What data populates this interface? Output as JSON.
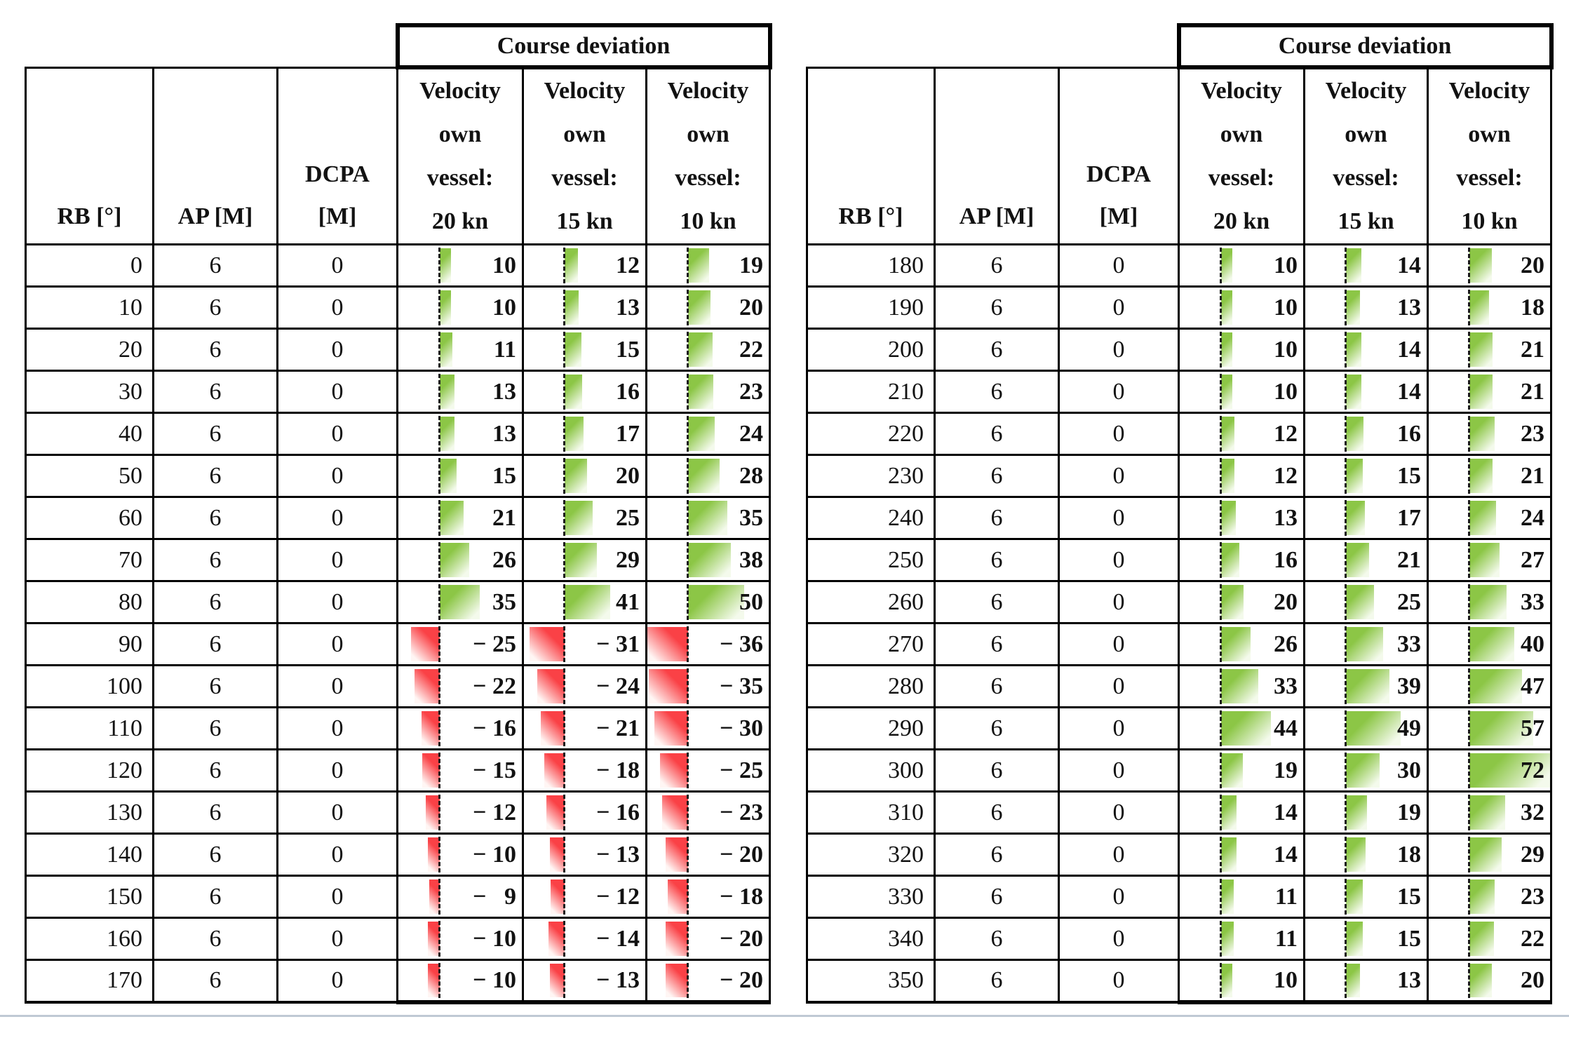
{
  "colors": {
    "bar_positive": "#8cc646",
    "bar_positive_fade": "#f4faec",
    "bar_negative": "#fa4146",
    "bar_negative_fade": "#fff6f4",
    "axis_line": "#1c1c1c",
    "table_border": "#000000",
    "bottom_rule": "#bfc9d4",
    "text": "#121212"
  },
  "bar_scale": {
    "min": -36,
    "max": 72
  },
  "tables": [
    {
      "title": "Course deviation",
      "columns": {
        "rb": "RB [°]",
        "ap": "AP [M]",
        "dcpa": "DCPA\n[M]",
        "vel": [
          "Velocity\nown\nvessel:\n20 kn",
          "Velocity\nown\nvessel:\n15 kn",
          "Velocity\nown\nvessel:\n10 kn"
        ]
      },
      "rows": [
        {
          "rb": "0",
          "ap": "6",
          "dcpa": "0",
          "v": [
            10,
            12,
            19
          ],
          "d": [
            "10",
            "12",
            "19"
          ]
        },
        {
          "rb": "10",
          "ap": "6",
          "dcpa": "0",
          "v": [
            10,
            13,
            20
          ],
          "d": [
            "10",
            "13",
            "20"
          ]
        },
        {
          "rb": "20",
          "ap": "6",
          "dcpa": "0",
          "v": [
            11,
            15,
            22
          ],
          "d": [
            "11",
            "15",
            "22"
          ]
        },
        {
          "rb": "30",
          "ap": "6",
          "dcpa": "0",
          "v": [
            13,
            16,
            23
          ],
          "d": [
            "13",
            "16",
            "23"
          ]
        },
        {
          "rb": "40",
          "ap": "6",
          "dcpa": "0",
          "v": [
            13,
            17,
            24
          ],
          "d": [
            "13",
            "17",
            "24"
          ]
        },
        {
          "rb": "50",
          "ap": "6",
          "dcpa": "0",
          "v": [
            15,
            20,
            28
          ],
          "d": [
            "15",
            "20",
            "28"
          ]
        },
        {
          "rb": "60",
          "ap": "6",
          "dcpa": "0",
          "v": [
            21,
            25,
            35
          ],
          "d": [
            "21",
            "25",
            "35"
          ]
        },
        {
          "rb": "70",
          "ap": "6",
          "dcpa": "0",
          "v": [
            26,
            29,
            38
          ],
          "d": [
            "26",
            "29",
            "38"
          ]
        },
        {
          "rb": "80",
          "ap": "6",
          "dcpa": "0",
          "v": [
            35,
            41,
            50
          ],
          "d": [
            "35",
            "41",
            "50"
          ]
        },
        {
          "rb": "90",
          "ap": "6",
          "dcpa": "0",
          "v": [
            -25,
            -31,
            -36
          ],
          "d": [
            "− 25",
            "− 31",
            "− 36"
          ]
        },
        {
          "rb": "100",
          "ap": "6",
          "dcpa": "0",
          "v": [
            -22,
            -24,
            -35
          ],
          "d": [
            "− 22",
            "− 24",
            "− 35"
          ]
        },
        {
          "rb": "110",
          "ap": "6",
          "dcpa": "0",
          "v": [
            -16,
            -21,
            -30
          ],
          "d": [
            "− 16",
            "− 21",
            "− 30"
          ]
        },
        {
          "rb": "120",
          "ap": "6",
          "dcpa": "0",
          "v": [
            -15,
            -18,
            -25
          ],
          "d": [
            "− 15",
            "− 18",
            "− 25"
          ]
        },
        {
          "rb": "130",
          "ap": "6",
          "dcpa": "0",
          "v": [
            -12,
            -16,
            -23
          ],
          "d": [
            "− 12",
            "− 16",
            "− 23"
          ]
        },
        {
          "rb": "140",
          "ap": "6",
          "dcpa": "0",
          "v": [
            -10,
            -13,
            -20
          ],
          "d": [
            "− 10",
            "− 13",
            "− 20"
          ]
        },
        {
          "rb": "150",
          "ap": "6",
          "dcpa": "0",
          "v": [
            -9,
            -12,
            -18
          ],
          "d": [
            "−  9",
            "− 12",
            "− 18"
          ]
        },
        {
          "rb": "160",
          "ap": "6",
          "dcpa": "0",
          "v": [
            -10,
            -14,
            -20
          ],
          "d": [
            "− 10",
            "− 14",
            "− 20"
          ]
        },
        {
          "rb": "170",
          "ap": "6",
          "dcpa": "0",
          "v": [
            -10,
            -13,
            -20
          ],
          "d": [
            "− 10",
            "− 13",
            "− 20"
          ]
        }
      ]
    },
    {
      "title": "Course deviation",
      "columns": {
        "rb": "RB [°]",
        "ap": "AP [M]",
        "dcpa": "DCPA\n[M]",
        "vel": [
          "Velocity\nown\nvessel:\n20 kn",
          "Velocity\nown\nvessel:\n15 kn",
          "Velocity\nown\nvessel:\n10 kn"
        ]
      },
      "rows": [
        {
          "rb": "180",
          "ap": "6",
          "dcpa": "0",
          "v": [
            10,
            14,
            20
          ],
          "d": [
            "10",
            "14",
            "20"
          ]
        },
        {
          "rb": "190",
          "ap": "6",
          "dcpa": "0",
          "v": [
            10,
            13,
            18
          ],
          "d": [
            "10",
            "13",
            "18"
          ]
        },
        {
          "rb": "200",
          "ap": "6",
          "dcpa": "0",
          "v": [
            10,
            14,
            21
          ],
          "d": [
            "10",
            "14",
            "21"
          ]
        },
        {
          "rb": "210",
          "ap": "6",
          "dcpa": "0",
          "v": [
            10,
            14,
            21
          ],
          "d": [
            "10",
            "14",
            "21"
          ]
        },
        {
          "rb": "220",
          "ap": "6",
          "dcpa": "0",
          "v": [
            12,
            16,
            23
          ],
          "d": [
            "12",
            "16",
            "23"
          ]
        },
        {
          "rb": "230",
          "ap": "6",
          "dcpa": "0",
          "v": [
            12,
            15,
            21
          ],
          "d": [
            "12",
            "15",
            "21"
          ]
        },
        {
          "rb": "240",
          "ap": "6",
          "dcpa": "0",
          "v": [
            13,
            17,
            24
          ],
          "d": [
            "13",
            "17",
            "24"
          ]
        },
        {
          "rb": "250",
          "ap": "6",
          "dcpa": "0",
          "v": [
            16,
            21,
            27
          ],
          "d": [
            "16",
            "21",
            "27"
          ]
        },
        {
          "rb": "260",
          "ap": "6",
          "dcpa": "0",
          "v": [
            20,
            25,
            33
          ],
          "d": [
            "20",
            "25",
            "33"
          ]
        },
        {
          "rb": "270",
          "ap": "6",
          "dcpa": "0",
          "v": [
            26,
            33,
            40
          ],
          "d": [
            "26",
            "33",
            "40"
          ]
        },
        {
          "rb": "280",
          "ap": "6",
          "dcpa": "0",
          "v": [
            33,
            39,
            47
          ],
          "d": [
            "33",
            "39",
            "47"
          ]
        },
        {
          "rb": "290",
          "ap": "6",
          "dcpa": "0",
          "v": [
            44,
            49,
            57
          ],
          "d": [
            "44",
            "49",
            "57"
          ]
        },
        {
          "rb": "300",
          "ap": "6",
          "dcpa": "0",
          "v": [
            19,
            30,
            72
          ],
          "d": [
            "19",
            "30",
            "72"
          ]
        },
        {
          "rb": "310",
          "ap": "6",
          "dcpa": "0",
          "v": [
            14,
            19,
            32
          ],
          "d": [
            "14",
            "19",
            "32"
          ]
        },
        {
          "rb": "320",
          "ap": "6",
          "dcpa": "0",
          "v": [
            14,
            18,
            29
          ],
          "d": [
            "14",
            "18",
            "29"
          ]
        },
        {
          "rb": "330",
          "ap": "6",
          "dcpa": "0",
          "v": [
            11,
            15,
            23
          ],
          "d": [
            "11",
            "15",
            "23"
          ]
        },
        {
          "rb": "340",
          "ap": "6",
          "dcpa": "0",
          "v": [
            11,
            15,
            22
          ],
          "d": [
            "11",
            "15",
            "22"
          ]
        },
        {
          "rb": "350",
          "ap": "6",
          "dcpa": "0",
          "v": [
            10,
            13,
            20
          ],
          "d": [
            "10",
            "13",
            "20"
          ]
        }
      ]
    }
  ]
}
